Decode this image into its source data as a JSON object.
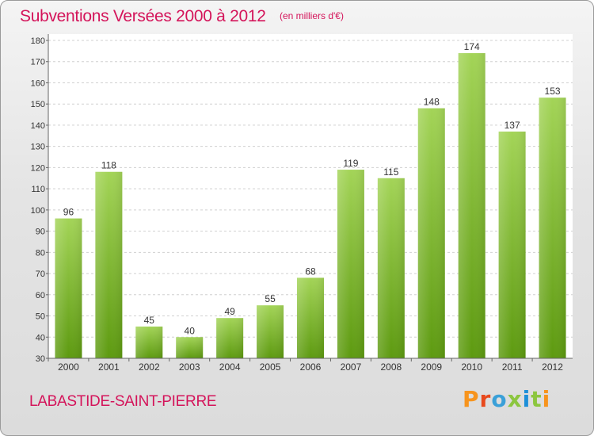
{
  "header": {
    "title": "Subventions Versées 2000 à 2012",
    "unit": "(en milliers d'€)"
  },
  "footer": {
    "commune": "LABASTIDE-SAINT-PIERRE",
    "brand": "Proxiti",
    "brand_colors": [
      "#f7941d",
      "#e8491d",
      "#3aa0d8",
      "#8cc63f",
      "#1d8fd8",
      "#8cc63f",
      "#f7941d"
    ]
  },
  "colors": {
    "accent": "#d4145a",
    "bar_light": "#a3d457",
    "bar_dark": "#5d9a10"
  },
  "chart_data": {
    "type": "bar",
    "title": "Subventions Versées 2000 à 2012",
    "categories": [
      "2000",
      "2001",
      "2002",
      "2003",
      "2004",
      "2005",
      "2006",
      "2007",
      "2008",
      "2009",
      "2010",
      "2011",
      "2012"
    ],
    "values": [
      96,
      118,
      45,
      40,
      49,
      55,
      68,
      119,
      115,
      148,
      174,
      137,
      153
    ],
    "ylim": [
      30,
      180
    ],
    "yticks": [
      30,
      40,
      50,
      60,
      70,
      80,
      90,
      100,
      110,
      120,
      130,
      140,
      150,
      160,
      170,
      180
    ],
    "grid": true,
    "xlabel": "",
    "ylabel": ""
  }
}
